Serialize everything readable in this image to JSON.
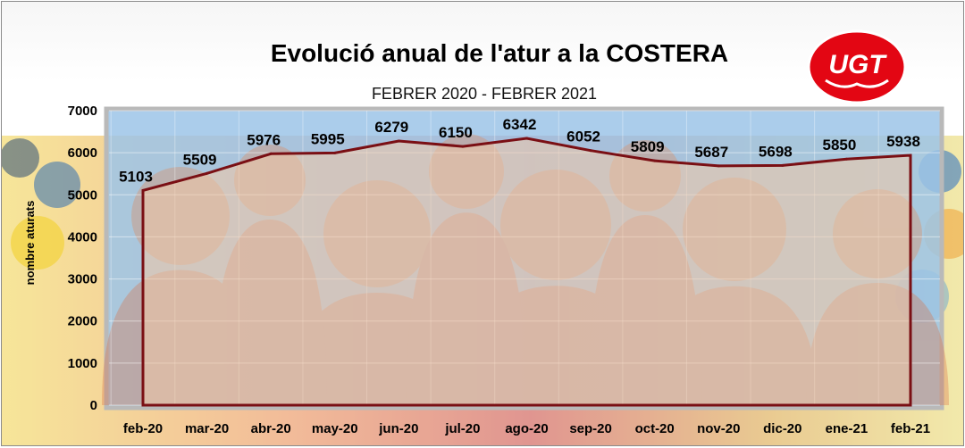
{
  "chart_data": {
    "type": "area",
    "title": "Evolució anual de l'atur a la COSTERA",
    "subtitle": "FEBRER 2020 - FEBRER 2021",
    "ylabel": "nombre aturats",
    "categories": [
      "feb-20",
      "mar-20",
      "abr-20",
      "may-20",
      "jun-20",
      "jul-20",
      "ago-20",
      "sep-20",
      "oct-20",
      "nov-20",
      "dic-20",
      "ene-21",
      "feb-21"
    ],
    "values": [
      5103,
      5509,
      5976,
      5995,
      6279,
      6150,
      6342,
      6052,
      5809,
      5687,
      5698,
      5850,
      5938
    ],
    "ylim": [
      0,
      7000
    ],
    "yticks": [
      "0",
      "1000",
      "2000",
      "3000",
      "4000",
      "5000",
      "6000",
      "7000"
    ],
    "grid": true,
    "colors": {
      "line": "#7a0f14",
      "fill": "#f2c9a6",
      "plot_background": "#9cc4e8",
      "logo": "#e30613"
    }
  },
  "logo": {
    "text": "UGT"
  }
}
